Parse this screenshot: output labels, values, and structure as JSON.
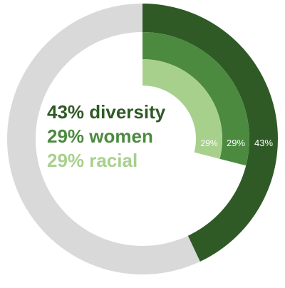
{
  "chart_data": {
    "type": "pie",
    "chart_style": "concentric radial rings",
    "series": [
      {
        "name": "diversity",
        "value": 43,
        "label": "43%",
        "legend": "43% diversity",
        "color": "#2f5a26",
        "track_color": "#d9d9d9"
      },
      {
        "name": "women",
        "value": 29,
        "label": "29%",
        "legend": "29% women",
        "color": "#4b8a3f"
      },
      {
        "name": "racial",
        "value": 29,
        "label": "29%",
        "legend": "29% racial",
        "color": "#a8d08d"
      }
    ],
    "value_max": 100,
    "start": "top",
    "direction": "clockwise",
    "legend_placement": "center-left"
  }
}
